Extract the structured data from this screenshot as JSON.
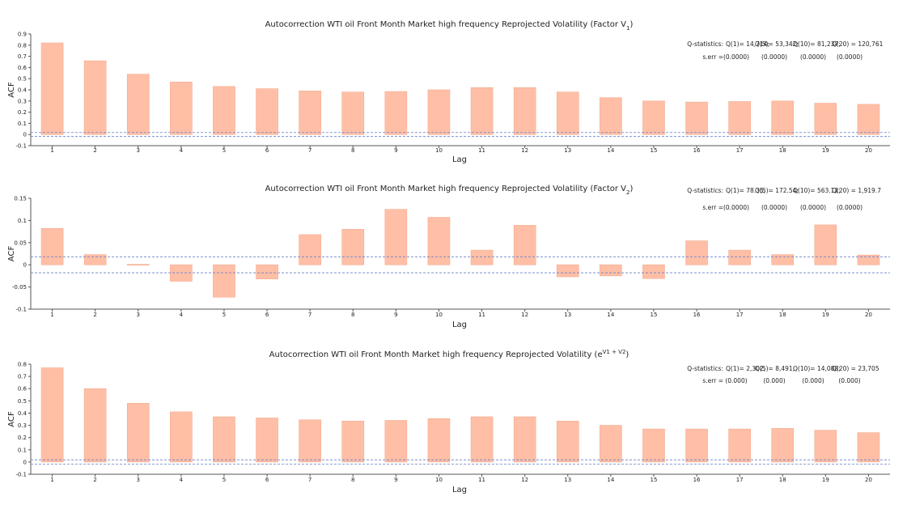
{
  "colors": {
    "bar_fill": "#ffbfa6",
    "bar_stroke": "#f3a98e",
    "band": "#6a7fc8",
    "axis": "#555555"
  },
  "chart_data": [
    {
      "type": "bar",
      "title": "Autocorrection WTI oil Front Month Market high frequency Reprojected Volatility (Factor V",
      "title_sub": "1",
      "title_tail": ")",
      "xlabel": "Lag",
      "ylabel": "ACF",
      "categories": [
        "1",
        "2",
        "3",
        "4",
        "5",
        "6",
        "7",
        "8",
        "9",
        "10",
        "11",
        "12",
        "13",
        "14",
        "15",
        "16",
        "17",
        "18",
        "19",
        "20"
      ],
      "values": [
        0.82,
        0.66,
        0.54,
        0.47,
        0.43,
        0.41,
        0.39,
        0.38,
        0.385,
        0.4,
        0.42,
        0.42,
        0.38,
        0.33,
        0.3,
        0.29,
        0.295,
        0.3,
        0.28,
        0.27
      ],
      "ylim": [
        -0.1,
        0.9
      ],
      "yticks": [
        "0.9",
        "0.8",
        "0.7",
        "0.6",
        "0.5",
        "0.4",
        "0.3",
        "0.2",
        "0.1",
        "0",
        "-0.1"
      ],
      "ytick_values": [
        0.9,
        0.8,
        0.7,
        0.6,
        0.5,
        0.4,
        0.3,
        0.2,
        0.1,
        0,
        -0.1
      ],
      "conf_band": 0.018,
      "q_statistics": {
        "label": "Q-statistics:",
        "stats": [
          "Q(1)= 14,714;",
          "Q(5)= 53,342;",
          "Q(10)= 81,237;",
          "Q(20) = 120,761"
        ],
        "serr_label": "s.err =",
        "serr": [
          "(0.0000)",
          "(0.0000)",
          "(0.0000)",
          "(0.0000)"
        ]
      }
    },
    {
      "type": "bar",
      "title": "Autocorrection WTI oil Front Month Market high frequency Reprojected Volatility (Factor V",
      "title_sub": "2",
      "title_tail": ")",
      "xlabel": "Lag",
      "ylabel": "ACF",
      "categories": [
        "1",
        "2",
        "3",
        "4",
        "5",
        "6",
        "7",
        "8",
        "9",
        "10",
        "11",
        "12",
        "13",
        "14",
        "15",
        "16",
        "17",
        "18",
        "19",
        "20"
      ],
      "values": [
        0.082,
        0.023,
        0.001,
        -0.037,
        -0.073,
        -0.032,
        0.068,
        0.08,
        0.125,
        0.107,
        0.033,
        0.089,
        -0.027,
        -0.025,
        -0.031,
        0.054,
        0.033,
        0.023,
        0.09,
        0.022
      ],
      "ylim": [
        -0.1,
        0.15
      ],
      "yticks": [
        "0.15",
        "0.1",
        "0.05",
        "0",
        "-0.05",
        "-0.1"
      ],
      "ytick_values": [
        0.15,
        0.1,
        0.05,
        0,
        -0.05,
        -0.1
      ],
      "conf_band": 0.018,
      "q_statistics": {
        "label": "Q-statistics:",
        "stats": [
          "Q(1)= 78.35;",
          "Q(5)= 172.54;",
          "Q(10)= 563.11;",
          "Q(20) = 1,919.7"
        ],
        "serr_label": "s.err =",
        "serr": [
          "(0.0000)",
          "(0.0000)",
          "(0.0000)",
          "(0.0000)"
        ]
      }
    },
    {
      "type": "bar",
      "title": "Autocorrection WTI oil Front Month Market high frequency Reprojected Volatility (e",
      "title_sup": "V1 + V2",
      "title_tail": ")",
      "xlabel": "Lag",
      "ylabel": "ACF",
      "categories": [
        "1",
        "2",
        "3",
        "4",
        "5",
        "6",
        "7",
        "8",
        "9",
        "10",
        "11",
        "12",
        "13",
        "14",
        "15",
        "16",
        "17",
        "18",
        "19",
        "20"
      ],
      "values": [
        0.77,
        0.6,
        0.48,
        0.41,
        0.37,
        0.36,
        0.345,
        0.335,
        0.34,
        0.355,
        0.37,
        0.37,
        0.335,
        0.3,
        0.27,
        0.27,
        0.27,
        0.275,
        0.26,
        0.24
      ],
      "ylim": [
        -0.1,
        0.8
      ],
      "yticks": [
        "0.8",
        "0.7",
        "0.6",
        "0.5",
        "0.4",
        "0.3",
        "0.2",
        "0.1",
        "0",
        "-0.1"
      ],
      "ytick_values": [
        0.8,
        0.7,
        0.6,
        0.5,
        0.4,
        0.3,
        0.2,
        0.1,
        0,
        -0.1
      ],
      "conf_band": 0.018,
      "q_statistics": {
        "label": "Q-statistics:",
        "stats": [
          "Q(1)= 2,302;",
          "Q(5)= 8,491;",
          "Q(10)= 14,088;",
          "Q(20) = 23,705"
        ],
        "serr_label": "s.err =",
        "serr": [
          "(0.000)",
          "(0.000)",
          "(0.000)",
          "(0.000)"
        ]
      }
    }
  ]
}
